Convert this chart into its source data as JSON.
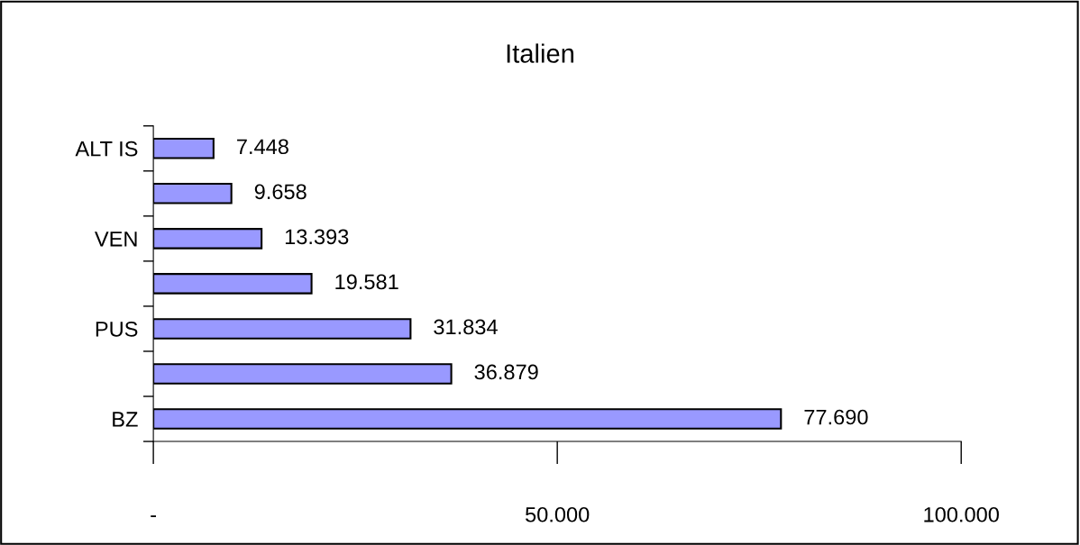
{
  "chart_data": {
    "type": "bar",
    "orientation": "horizontal",
    "title": "Italien",
    "categories": [
      "ALT IS",
      null,
      "VEN",
      null,
      "PUS",
      null,
      "BZ"
    ],
    "values": [
      7448,
      9658,
      13393,
      19581,
      31834,
      36879,
      77690
    ],
    "value_labels": [
      "7.448",
      "9.658",
      "13.393",
      "19.581",
      "31.834",
      "36.879",
      "77.690"
    ],
    "color": "#9999ff",
    "xlim": [
      0,
      100000
    ],
    "xticks": [
      {
        "value": 0,
        "label": "-"
      },
      {
        "value": 50000,
        "label": "50.000"
      },
      {
        "value": 100000,
        "label": "100.000"
      }
    ],
    "grid": false,
    "legend": false
  }
}
